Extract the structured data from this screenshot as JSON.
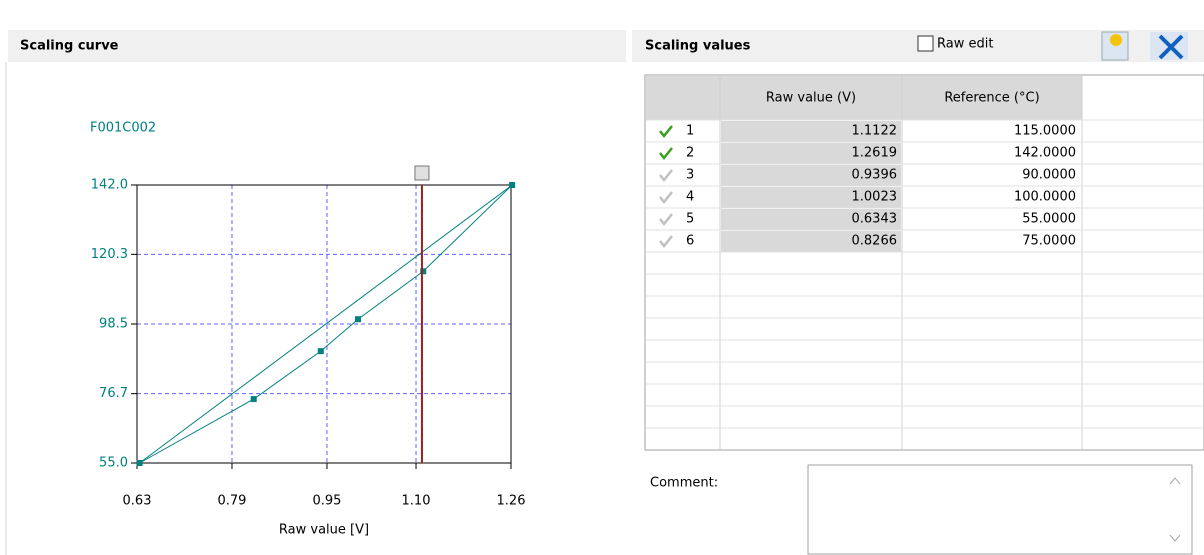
{
  "left_panel": {
    "title": "Scaling curve"
  },
  "chart": {
    "type": "line",
    "series_label": "F001C002",
    "x_label": "Raw value [V]",
    "x": [
      0.6343,
      0.8266,
      0.9396,
      1.0023,
      1.1122,
      1.2619
    ],
    "y": [
      55,
      75,
      90,
      100,
      115,
      142
    ],
    "line_x": [
      0.6343,
      1.2619
    ],
    "line_y": [
      55,
      142
    ],
    "cursor_x": 1.11,
    "xlim": [
      0.63,
      1.26
    ],
    "ylim": [
      55,
      142
    ],
    "xticks": [
      0.63,
      0.79,
      0.95,
      {
        "value": 1.1,
        "label": "1.10"
      },
      1.26
    ],
    "yticks": [
      {
        "value": 142,
        "label": "142.0"
      },
      120.3,
      98.5,
      76.7,
      {
        "value": 55,
        "label": "55.0"
      }
    ],
    "color": "#008080",
    "grid": true
  },
  "right_panel": {
    "title": "Scaling values",
    "raw_edit": "Raw edit"
  },
  "table": {
    "columns": [
      "Raw value (V)",
      "Reference (°C)"
    ],
    "rows": [
      [
        "1",
        "1.1122",
        "115.0000"
      ],
      [
        "2",
        "1.2619",
        "142.0000"
      ],
      [
        "3",
        "0.9396",
        "90.0000"
      ],
      [
        "4",
        "1.0023",
        "100.0000"
      ],
      [
        "5",
        "0.6343",
        "55.0000"
      ],
      [
        "6",
        "0.8266",
        "75.0000"
      ]
    ]
  },
  "comment": {
    "label": "Comment:"
  }
}
